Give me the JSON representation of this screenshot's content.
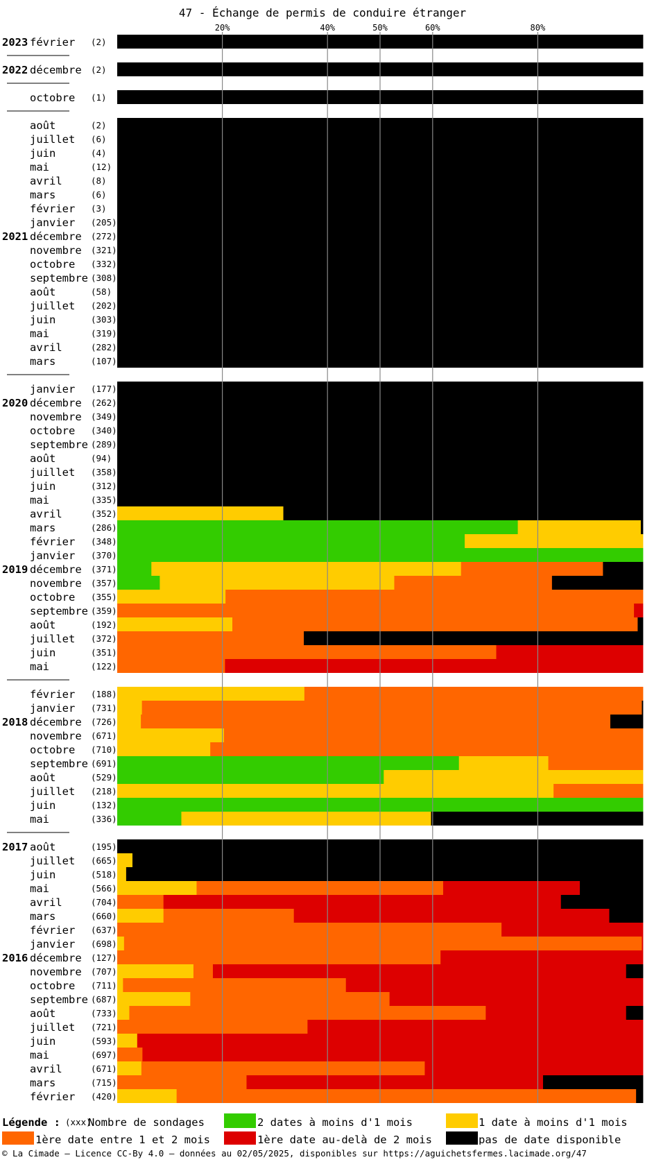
{
  "chart_data": {
    "type": "bar",
    "title": "47 - Échange de permis de conduire étranger",
    "x_ticks": [
      "20%",
      "40%",
      "50%",
      "60%",
      "80%"
    ],
    "x_tick_values": [
      20,
      40,
      50,
      60,
      80
    ],
    "xlim": [
      0,
      100
    ],
    "colors": {
      "c2": "#33cc00",
      "c1": "#ffcc00",
      "o": "#ff6600",
      "r": "#dd0000",
      "k": "#000000"
    },
    "rows": [
      {
        "y": "2023",
        "m": "février",
        "n": "(2)",
        "s": [
          [
            "k",
            100
          ]
        ]
      },
      {
        "sep": true
      },
      {
        "y": "2022",
        "m": "décembre",
        "n": "(2)",
        "s": [
          [
            "k",
            100
          ]
        ]
      },
      {
        "sep": true
      },
      {
        "m": "octobre",
        "n": "(1)",
        "s": [
          [
            "k",
            100
          ]
        ]
      },
      {
        "sep": true
      },
      {
        "m": "août",
        "n": "(2)",
        "s": [
          [
            "k",
            100
          ]
        ]
      },
      {
        "m": "juillet",
        "n": "(6)",
        "s": [
          [
            "k",
            100
          ]
        ]
      },
      {
        "m": "juin",
        "n": "(4)",
        "s": [
          [
            "k",
            100
          ]
        ]
      },
      {
        "m": "mai",
        "n": "(12)",
        "s": [
          [
            "k",
            100
          ]
        ]
      },
      {
        "m": "avril",
        "n": "(8)",
        "s": [
          [
            "k",
            100
          ]
        ]
      },
      {
        "m": "mars",
        "n": "(6)",
        "s": [
          [
            "k",
            100
          ]
        ]
      },
      {
        "m": "février",
        "n": "(3)",
        "s": [
          [
            "k",
            100
          ]
        ]
      },
      {
        "m": "janvier",
        "n": "(205)",
        "s": [
          [
            "k",
            100
          ]
        ]
      },
      {
        "y": "2021",
        "m": "décembre",
        "n": "(272)",
        "s": [
          [
            "k",
            100
          ]
        ]
      },
      {
        "m": "novembre",
        "n": "(321)",
        "s": [
          [
            "k",
            100
          ]
        ]
      },
      {
        "m": "octobre",
        "n": "(332)",
        "s": [
          [
            "k",
            100
          ]
        ]
      },
      {
        "m": "septembre",
        "n": "(308)",
        "s": [
          [
            "k",
            100
          ]
        ]
      },
      {
        "m": "août",
        "n": "(58)",
        "s": [
          [
            "k",
            100
          ]
        ]
      },
      {
        "m": "juillet",
        "n": "(202)",
        "s": [
          [
            "k",
            100
          ]
        ]
      },
      {
        "m": "juin",
        "n": "(303)",
        "s": [
          [
            "k",
            100
          ]
        ]
      },
      {
        "m": "mai",
        "n": "(319)",
        "s": [
          [
            "k",
            100
          ]
        ]
      },
      {
        "m": "avril",
        "n": "(282)",
        "s": [
          [
            "k",
            100
          ]
        ]
      },
      {
        "m": "mars",
        "n": "(107)",
        "s": [
          [
            "k",
            100
          ]
        ]
      },
      {
        "sep": true
      },
      {
        "m": "janvier",
        "n": "(177)",
        "s": [
          [
            "k",
            100
          ]
        ]
      },
      {
        "y": "2020",
        "m": "décembre",
        "n": "(262)",
        "s": [
          [
            "k",
            100
          ]
        ]
      },
      {
        "m": "novembre",
        "n": "(349)",
        "s": [
          [
            "k",
            100
          ]
        ]
      },
      {
        "m": "octobre",
        "n": "(340)",
        "s": [
          [
            "k",
            100
          ]
        ]
      },
      {
        "m": "septembre",
        "n": "(289)",
        "s": [
          [
            "k",
            100
          ]
        ]
      },
      {
        "m": "août",
        "n": "(94)",
        "s": [
          [
            "k",
            100
          ]
        ]
      },
      {
        "m": "juillet",
        "n": "(358)",
        "s": [
          [
            "k",
            100
          ]
        ]
      },
      {
        "m": "juin",
        "n": "(312)",
        "s": [
          [
            "k",
            100
          ]
        ]
      },
      {
        "m": "mai",
        "n": "(335)",
        "s": [
          [
            "k",
            100
          ]
        ]
      },
      {
        "m": "avril",
        "n": "(352)",
        "s": [
          [
            "c1",
            31.6
          ],
          [
            "k",
            68.4
          ]
        ]
      },
      {
        "m": "mars",
        "n": "(286)",
        "s": [
          [
            "c2",
            76.2
          ],
          [
            "c1",
            23.4
          ],
          [
            "k",
            0.4
          ]
        ]
      },
      {
        "m": "février",
        "n": "(348)",
        "s": [
          [
            "c2",
            66.1
          ],
          [
            "c1",
            33.9
          ]
        ]
      },
      {
        "m": "janvier",
        "n": "(370)",
        "s": [
          [
            "c2",
            100
          ]
        ]
      },
      {
        "y": "2019",
        "m": "décembre",
        "n": "(371)",
        "s": [
          [
            "c2",
            6.5
          ],
          [
            "c1",
            58.9
          ],
          [
            "o",
            27.0
          ],
          [
            "k",
            7.6
          ]
        ]
      },
      {
        "m": "novembre",
        "n": "(357)",
        "s": [
          [
            "c2",
            8.1
          ],
          [
            "c1",
            44.6
          ],
          [
            "o",
            30.0
          ],
          [
            "k",
            17.3
          ]
        ]
      },
      {
        "m": "octobre",
        "n": "(355)",
        "s": [
          [
            "c1",
            20.6
          ],
          [
            "o",
            79.4
          ]
        ]
      },
      {
        "m": "septembre",
        "n": "(359)",
        "s": [
          [
            "o",
            98.3
          ],
          [
            "r",
            1.7
          ]
        ]
      },
      {
        "m": "août",
        "n": "(192)",
        "s": [
          [
            "c1",
            21.9
          ],
          [
            "o",
            77.1
          ],
          [
            "k",
            1.0
          ]
        ]
      },
      {
        "m": "juillet",
        "n": "(372)",
        "s": [
          [
            "o",
            35.5
          ],
          [
            "k",
            64.5
          ]
        ]
      },
      {
        "m": "juin",
        "n": "(351)",
        "s": [
          [
            "o",
            72.1
          ],
          [
            "r",
            27.9
          ]
        ]
      },
      {
        "m": "mai",
        "n": "(122)",
        "s": [
          [
            "o",
            20.5
          ],
          [
            "r",
            79.5
          ]
        ]
      },
      {
        "sep": true
      },
      {
        "m": "février",
        "n": "(188)",
        "s": [
          [
            "c1",
            35.6
          ],
          [
            "o",
            64.4
          ]
        ]
      },
      {
        "m": "janvier",
        "n": "(731)",
        "s": [
          [
            "c1",
            4.7
          ],
          [
            "o",
            95.1
          ],
          [
            "k",
            0.2
          ]
        ]
      },
      {
        "y": "2018",
        "m": "décembre",
        "n": "(726)",
        "s": [
          [
            "c1",
            4.5
          ],
          [
            "o",
            89.3
          ],
          [
            "k",
            6.2
          ]
        ]
      },
      {
        "m": "novembre",
        "n": "(671)",
        "s": [
          [
            "c1",
            20.3
          ],
          [
            "o",
            79.7
          ]
        ]
      },
      {
        "m": "octobre",
        "n": "(710)",
        "s": [
          [
            "c1",
            17.7
          ],
          [
            "o",
            82.3
          ]
        ]
      },
      {
        "m": "septembre",
        "n": "(691)",
        "s": [
          [
            "c2",
            65.0
          ],
          [
            "c1",
            17.0
          ],
          [
            "o",
            18.0
          ]
        ]
      },
      {
        "m": "août",
        "n": "(529)",
        "s": [
          [
            "c2",
            50.7
          ],
          [
            "c1",
            49.3
          ]
        ]
      },
      {
        "m": "juillet",
        "n": "(218)",
        "s": [
          [
            "c1",
            83.0
          ],
          [
            "o",
            17.0
          ]
        ]
      },
      {
        "m": "juin",
        "n": "(132)",
        "s": [
          [
            "c2",
            100
          ]
        ]
      },
      {
        "m": "mai",
        "n": "(336)",
        "s": [
          [
            "c2",
            12.2
          ],
          [
            "c1",
            47.5
          ],
          [
            "k",
            40.3
          ]
        ]
      },
      {
        "sep": true
      },
      {
        "y": "2017",
        "m": "août",
        "n": "(195)",
        "s": [
          [
            "k",
            100
          ]
        ]
      },
      {
        "m": "juillet",
        "n": "(665)",
        "s": [
          [
            "c1",
            2.9
          ],
          [
            "k",
            97.1
          ]
        ]
      },
      {
        "m": "juin",
        "n": "(518)",
        "s": [
          [
            "c1",
            1.7
          ],
          [
            "k",
            98.3
          ]
        ]
      },
      {
        "m": "mai",
        "n": "(566)",
        "s": [
          [
            "c1",
            15.1
          ],
          [
            "o",
            46.9
          ],
          [
            "r",
            26.0
          ],
          [
            "k",
            12.0
          ]
        ]
      },
      {
        "m": "avril",
        "n": "(704)",
        "s": [
          [
            "o",
            8.8
          ],
          [
            "r",
            75.6
          ],
          [
            "k",
            15.6
          ]
        ]
      },
      {
        "m": "mars",
        "n": "(660)",
        "s": [
          [
            "c1",
            8.8
          ],
          [
            "o",
            24.8
          ],
          [
            "r",
            60.0
          ],
          [
            "k",
            6.4
          ]
        ]
      },
      {
        "m": "février",
        "n": "(637)",
        "s": [
          [
            "o",
            73.1
          ],
          [
            "r",
            26.9
          ]
        ]
      },
      {
        "m": "janvier",
        "n": "(698)",
        "s": [
          [
            "c1",
            1.3
          ],
          [
            "o",
            98.5
          ],
          [
            "r",
            0.2
          ]
        ]
      },
      {
        "y": "2016",
        "m": "décembre",
        "n": "(127)",
        "s": [
          [
            "o",
            61.5
          ],
          [
            "r",
            38.5
          ]
        ]
      },
      {
        "m": "novembre",
        "n": "(707)",
        "s": [
          [
            "c1",
            14.5
          ],
          [
            "o",
            3.7
          ],
          [
            "r",
            78.6
          ],
          [
            "k",
            3.2
          ]
        ]
      },
      {
        "m": "octobre",
        "n": "(711)",
        "s": [
          [
            "c1",
            1.1
          ],
          [
            "o",
            42.4
          ],
          [
            "r",
            56.5
          ]
        ]
      },
      {
        "m": "septembre",
        "n": "(687)",
        "s": [
          [
            "c1",
            13.9
          ],
          [
            "o",
            37.9
          ],
          [
            "r",
            48.2
          ]
        ]
      },
      {
        "m": "août",
        "n": "(733)",
        "s": [
          [
            "c1",
            2.3
          ],
          [
            "o",
            67.8
          ],
          [
            "r",
            26.7
          ],
          [
            "k",
            3.2
          ]
        ]
      },
      {
        "m": "juillet",
        "n": "(721)",
        "s": [
          [
            "o",
            36.2
          ],
          [
            "r",
            63.8
          ]
        ]
      },
      {
        "m": "juin",
        "n": "(593)",
        "s": [
          [
            "c1",
            3.8
          ],
          [
            "r",
            96.2
          ]
        ]
      },
      {
        "m": "mai",
        "n": "(697)",
        "s": [
          [
            "o",
            4.8
          ],
          [
            "r",
            95.2
          ]
        ]
      },
      {
        "m": "avril",
        "n": "(671)",
        "s": [
          [
            "c1",
            4.6
          ],
          [
            "o",
            53.9
          ],
          [
            "r",
            41.5
          ]
        ]
      },
      {
        "m": "mars",
        "n": "(715)",
        "s": [
          [
            "o",
            24.6
          ],
          [
            "r",
            56.4
          ],
          [
            "k",
            19.0
          ]
        ]
      },
      {
        "m": "février",
        "n": "(420)",
        "s": [
          [
            "c1",
            11.3
          ],
          [
            "o",
            87.4
          ],
          [
            "k",
            1.3
          ]
        ]
      }
    ],
    "legend": {
      "title": "Légende :",
      "count_marker": "(xxx)",
      "count_label": "Nombre de sondages",
      "items": [
        {
          "key": "c2",
          "label": "2 dates à moins d'1 mois"
        },
        {
          "key": "c1",
          "label": "1 date à moins d'1 mois"
        },
        {
          "key": "o",
          "label": "1ère date entre 1 et 2 mois"
        },
        {
          "key": "r",
          "label": "1ère date au-delà de 2 mois"
        },
        {
          "key": "k",
          "label": "pas de date disponible"
        }
      ]
    }
  },
  "footer": "© La Cimade — Licence CC-By 4.0 — données au 02/05/2025, disponibles sur https://aguichetsfermes.lacimade.org/47"
}
